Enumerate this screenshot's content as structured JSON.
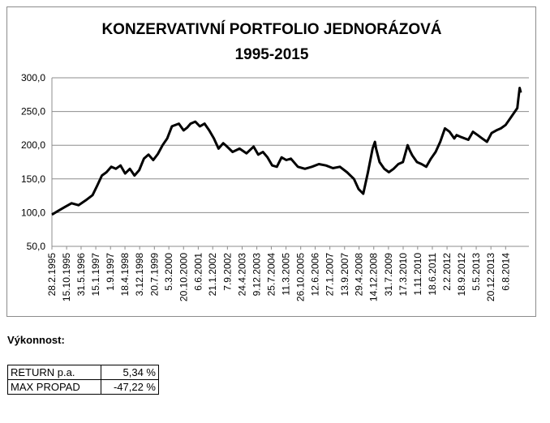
{
  "chart_data": {
    "type": "line",
    "title": "KONZERVATIVNÍ PORTFOLIO JEDNORÁZOVÁ",
    "subtitle": "1995-2015",
    "ylim": [
      50,
      300
    ],
    "yticks": [
      "50,0",
      "100,0",
      "150,0",
      "200,0",
      "250,0",
      "300,0"
    ],
    "ytick_values": [
      50,
      100,
      150,
      200,
      250,
      300
    ],
    "xlim": [
      1995.16,
      2015.25
    ],
    "xticks": [
      "28.2.1995",
      "15.10.1995",
      "31.5.1996",
      "15.1.1997",
      "1.9.1997",
      "18.4.1998",
      "3.12.1998",
      "20.7.1999",
      "5.3.2000",
      "20.10.2000",
      "6.6.2001",
      "21.1.2002",
      "7.9.2002",
      "24.4.2003",
      "9.12.2003",
      "25.7.2004",
      "11.3.2005",
      "26.10.2005",
      "12.6.2006",
      "27.1.2007",
      "13.9.2007",
      "29.4.2008",
      "14.12.2008",
      "31.7.2009",
      "17.3.2010",
      "1.11.2010",
      "18.6.2011",
      "2.2.2012",
      "18.9.2012",
      "5.5.2013",
      "20.12.2013",
      "6.8.2014"
    ],
    "xtick_values": [
      1995.16,
      1995.79,
      1996.41,
      1997.04,
      1997.67,
      1998.29,
      1998.92,
      1999.55,
      2000.17,
      2000.8,
      2001.43,
      2002.05,
      2002.68,
      2003.31,
      2003.94,
      2004.56,
      2005.19,
      2005.82,
      2006.44,
      2007.07,
      2007.7,
      2008.32,
      2008.95,
      2009.58,
      2010.21,
      2010.83,
      2011.46,
      2012.09,
      2012.71,
      2013.34,
      2013.97,
      2014.6
    ],
    "grid": "horizontal",
    "series": [
      {
        "color": "#000000",
        "x": [
          1995.16,
          1995.4,
          1995.7,
          1996.0,
          1996.3,
          1996.6,
          1996.9,
          1997.1,
          1997.3,
          1997.5,
          1997.7,
          1997.9,
          1998.1,
          1998.3,
          1998.5,
          1998.7,
          1998.9,
          1999.1,
          1999.3,
          1999.5,
          1999.7,
          1999.9,
          2000.1,
          2000.3,
          2000.6,
          2000.8,
          2000.95,
          2001.1,
          2001.3,
          2001.5,
          2001.7,
          2001.9,
          2002.1,
          2002.3,
          2002.5,
          2002.6,
          2002.9,
          2003.2,
          2003.5,
          2003.8,
          2004.0,
          2004.2,
          2004.4,
          2004.6,
          2004.8,
          2005.0,
          2005.2,
          2005.4,
          2005.7,
          2006.0,
          2006.3,
          2006.6,
          2006.9,
          2007.2,
          2007.5,
          2007.8,
          2008.1,
          2008.3,
          2008.5,
          2008.7,
          2008.9,
          2009.0,
          2009.05,
          2009.2,
          2009.4,
          2009.6,
          2009.8,
          2010.0,
          2010.2,
          2010.4,
          2010.5,
          2010.6,
          2010.8,
          2011.0,
          2011.2,
          2011.4,
          2011.6,
          2011.8,
          2012.0,
          2012.2,
          2012.4,
          2012.5,
          2012.7,
          2013.0,
          2013.2,
          2013.4,
          2013.6,
          2013.8,
          2014.0,
          2014.2,
          2014.4,
          2014.6,
          2014.8,
          2015.0,
          2015.1,
          2015.15,
          2015.2,
          2015.25
        ],
        "y": [
          97,
          102,
          108,
          114,
          111,
          118,
          126,
          140,
          155,
          160,
          168,
          165,
          170,
          158,
          165,
          155,
          163,
          180,
          186,
          178,
          187,
          200,
          210,
          228,
          232,
          222,
          226,
          232,
          235,
          228,
          232,
          222,
          210,
          195,
          203,
          200,
          190,
          195,
          188,
          198,
          186,
          190,
          182,
          170,
          168,
          182,
          178,
          180,
          168,
          165,
          168,
          172,
          170,
          166,
          168,
          160,
          150,
          135,
          128,
          160,
          195,
          205,
          195,
          175,
          165,
          160,
          165,
          172,
          175,
          200,
          192,
          185,
          175,
          172,
          168,
          180,
          190,
          205,
          225,
          220,
          210,
          215,
          212,
          208,
          220,
          215,
          210,
          205,
          218,
          222,
          225,
          230,
          240,
          250,
          255,
          270,
          285,
          278
        ]
      }
    ]
  },
  "performance": {
    "heading": "Výkonnost:",
    "rows": [
      {
        "label": "RETURN  p.a.",
        "value": "5,34 %"
      },
      {
        "label": "MAX PROPAD",
        "value": "-47,22 %"
      }
    ]
  }
}
